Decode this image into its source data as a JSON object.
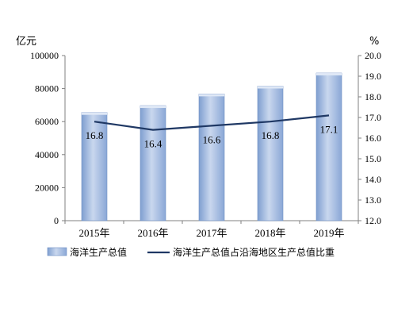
{
  "chart_data": {
    "type": "bar",
    "categories": [
      "2015年",
      "2016年",
      "2017年",
      "2018年",
      "2019年"
    ],
    "series": [
      {
        "name": "海洋生产总值",
        "type": "bar",
        "axis": "left",
        "values": [
          65534,
          69694,
          76749,
          81491,
          89415
        ],
        "color": "#9bb5dd"
      },
      {
        "name": "海洋生产总值占沿海地区生产总值比重",
        "type": "line",
        "axis": "right",
        "values": [
          16.8,
          16.4,
          16.6,
          16.8,
          17.1
        ],
        "labels": [
          "16.8",
          "16.4",
          "16.6",
          "16.8",
          "17.1"
        ],
        "color": "#1f3864"
      }
    ],
    "y_left": {
      "unit": "亿元",
      "ylim": [
        0,
        100000
      ],
      "ticks": [
        "0",
        "20000",
        "40000",
        "60000",
        "80000",
        "100000"
      ]
    },
    "y_right": {
      "unit": "%",
      "ylim": [
        12.0,
        20.0
      ],
      "ticks": [
        "12.0",
        "13.0",
        "14.0",
        "15.0",
        "16.0",
        "17.0",
        "18.0",
        "19.0",
        "20.0"
      ]
    },
    "grid": false,
    "legend_position": "bottom"
  }
}
